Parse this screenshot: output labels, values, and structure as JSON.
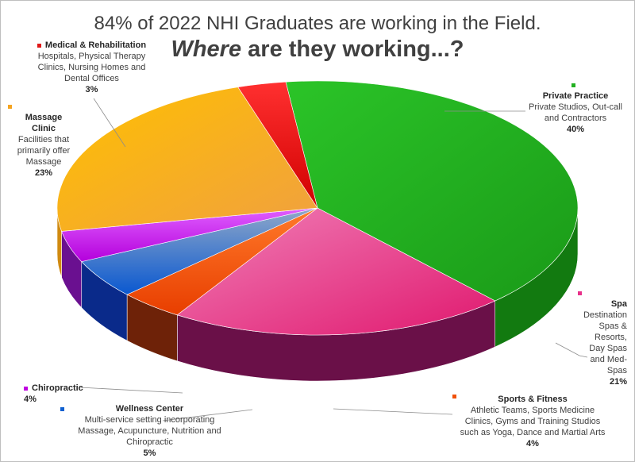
{
  "title": {
    "line1": "84% of 2022 NHI Graduates are working in the Field.",
    "line2_em": "Where",
    "line2_rest": " are they working...?"
  },
  "chart_data": {
    "type": "pie",
    "title": "84% of 2022 NHI Graduates are working in the Field. Where are they working...?",
    "slices": [
      {
        "name": "Private Practice",
        "desc": "Private Studios, Out-call and Contractors",
        "pct": "40%",
        "value": 40,
        "color": "#22b020"
      },
      {
        "name": "Spa",
        "desc": "Destination Spas & Resorts, Day Spas and Med-Spas",
        "pct": "21%",
        "value": 21,
        "color": "#e8308a"
      },
      {
        "name": "Sports & Fitness",
        "desc": "Athletic Teams, Sports Medicine Clinics, Gyms and Training Studios such as Yoga, Dance and Martial Arts",
        "pct": "4%",
        "value": 4,
        "color": "#f0500a"
      },
      {
        "name": "Wellness Center",
        "desc": "Multi-service setting incorporating Massage, Acupuncture, Nutrition and Chiropractic",
        "pct": "5%",
        "value": 5,
        "color": "#1060d0"
      },
      {
        "name": "Chiropractic",
        "desc": "",
        "pct": "4%",
        "value": 4,
        "color": "#c000e0"
      },
      {
        "name": "Massage Clinic",
        "desc": "Facilities that primarily offer Massage",
        "pct": "23%",
        "value": 23,
        "color": "#f5a420"
      },
      {
        "name": "Medical & Rehabilitation",
        "desc": "Hospitals, Physical Therapy Clinics, Nursing Homes and Dental Offices",
        "pct": "3%",
        "value": 3,
        "color": "#e01818"
      }
    ]
  },
  "labels": {
    "private": {
      "name": "Private Practice",
      "l1": "Private Studios, Out-call",
      "l2": "and Contractors",
      "pct": "40%"
    },
    "spa": {
      "name": "Spa",
      "l1": "Destination",
      "l2": "Spas &",
      "l3": "Resorts,",
      "l4": "Day Spas",
      "l5": "and Med-",
      "l6": "Spas",
      "pct": "21%"
    },
    "sports": {
      "name": "Sports & Fitness",
      "l1": "Athletic Teams, Sports Medicine",
      "l2": "Clinics, Gyms and Training Studios",
      "l3": "such as Yoga, Dance and Martial Arts",
      "pct": "4%"
    },
    "wellness": {
      "name": "Wellness Center",
      "l1": "Multi-service setting incorporating",
      "l2": "Massage, Acupuncture, Nutrition and",
      "l3": "Chiropractic",
      "pct": "5%"
    },
    "chiro": {
      "name": "Chiropractic",
      "pct": "4%"
    },
    "massage": {
      "name1": "Massage",
      "name2": "Clinic",
      "l1": "Facilities that",
      "l2": "primarily offer",
      "l3": "Massage",
      "pct": "23%"
    },
    "medical": {
      "name": "Medical & Rehabilitation",
      "l1": "Hospitals, Physical Therapy",
      "l2": "Clinics, Nursing Homes and",
      "l3": "Dental Offices",
      "pct": "3%"
    }
  }
}
